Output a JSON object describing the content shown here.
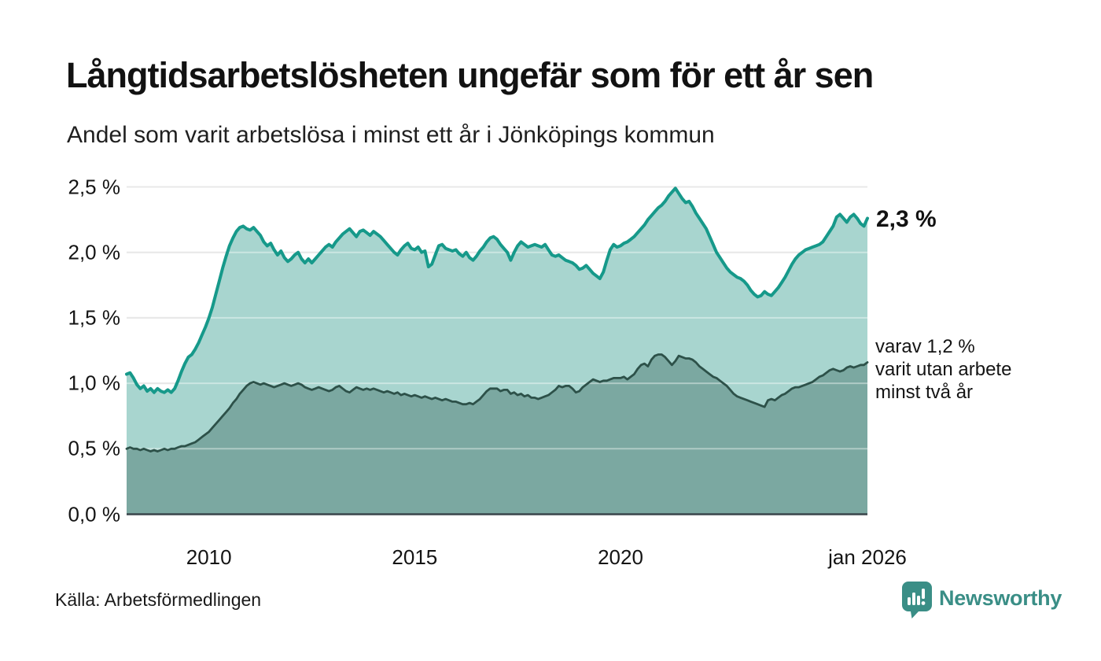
{
  "header": {
    "title": "Långtidsarbetslösheten ungefär som för ett år sen",
    "subtitle": "Andel som varit arbetslösa i minst ett år i Jönköpings kommun"
  },
  "end_label": "2,3 %",
  "annotation": {
    "line1": "varav 1,2 %",
    "line2": "varit utan arbete",
    "line3": "minst två år"
  },
  "source": "Källa: Arbetsförmedlingen",
  "logo": {
    "text": "Newsworthy"
  },
  "colors": {
    "line_1yr": "#16998a",
    "fill_1yr": "#a8d5cf",
    "line_2yr": "#2d5149",
    "fill_2yr": "#7ba8a1",
    "grid": "#d9d9d9",
    "grid_overlay": "rgba(255,255,255,0.40)",
    "baseline": "#39444a",
    "logo_teal": "#3a8e86"
  },
  "y_axis": {
    "ticks": [
      {
        "label": "0,0 %",
        "value": 0.0
      },
      {
        "label": "0,5 %",
        "value": 0.5
      },
      {
        "label": "1,0 %",
        "value": 1.0
      },
      {
        "label": "1,5 %",
        "value": 1.5
      },
      {
        "label": "2,0 %",
        "value": 2.0
      },
      {
        "label": "2,5 %",
        "value": 2.5
      }
    ]
  },
  "x_axis": {
    "ticks": [
      {
        "label": "2010",
        "year": 2010
      },
      {
        "label": "2015",
        "year": 2015
      },
      {
        "label": "2020",
        "year": 2020
      },
      {
        "label": "jan 2026",
        "year": 2026
      }
    ]
  },
  "chart_data": {
    "type": "area",
    "title": "Långtidsarbetslösheten ungefär som för ett år sen",
    "subtitle": "Andel som varit arbetslösa i minst ett år i Jönköpings kommun",
    "x_start_year": 2008.0,
    "x_end_year": 2026.0,
    "x_step": "1 month",
    "ylim": [
      0,
      2.5
    ],
    "grid": true,
    "unit": "%",
    "last_point_labels": [
      "2,3 %",
      "varav 1,2 % varit utan arbete minst två år"
    ],
    "series": [
      {
        "name": "Andel arbetslösa minst ett år",
        "values": [
          1.07,
          1.08,
          1.04,
          0.99,
          0.96,
          0.98,
          0.94,
          0.96,
          0.93,
          0.96,
          0.94,
          0.93,
          0.95,
          0.93,
          0.96,
          1.02,
          1.09,
          1.15,
          1.2,
          1.22,
          1.26,
          1.31,
          1.37,
          1.43,
          1.5,
          1.58,
          1.68,
          1.78,
          1.88,
          1.97,
          2.05,
          2.11,
          2.16,
          2.19,
          2.2,
          2.18,
          2.17,
          2.19,
          2.16,
          2.13,
          2.08,
          2.05,
          2.07,
          2.02,
          1.98,
          2.01,
          1.96,
          1.93,
          1.95,
          1.98,
          2.0,
          1.95,
          1.92,
          1.95,
          1.92,
          1.95,
          1.98,
          2.01,
          2.04,
          2.06,
          2.04,
          2.08,
          2.11,
          2.14,
          2.16,
          2.18,
          2.15,
          2.12,
          2.16,
          2.17,
          2.15,
          2.13,
          2.16,
          2.14,
          2.12,
          2.09,
          2.06,
          2.03,
          2.0,
          1.98,
          2.02,
          2.05,
          2.07,
          2.03,
          2.02,
          2.04,
          2.0,
          2.01,
          1.89,
          1.91,
          1.98,
          2.05,
          2.06,
          2.03,
          2.02,
          2.01,
          2.02,
          1.99,
          1.97,
          2.0,
          1.96,
          1.94,
          1.97,
          2.01,
          2.04,
          2.08,
          2.11,
          2.12,
          2.1,
          2.06,
          2.03,
          2.0,
          1.94,
          2.0,
          2.05,
          2.08,
          2.06,
          2.04,
          2.05,
          2.06,
          2.05,
          2.04,
          2.06,
          2.02,
          1.98,
          1.97,
          1.98,
          1.96,
          1.94,
          1.93,
          1.92,
          1.9,
          1.87,
          1.88,
          1.9,
          1.87,
          1.84,
          1.82,
          1.8,
          1.85,
          1.94,
          2.02,
          2.06,
          2.04,
          2.05,
          2.07,
          2.08,
          2.1,
          2.12,
          2.15,
          2.18,
          2.21,
          2.25,
          2.28,
          2.31,
          2.34,
          2.36,
          2.39,
          2.43,
          2.46,
          2.49,
          2.45,
          2.41,
          2.38,
          2.39,
          2.35,
          2.3,
          2.26,
          2.22,
          2.18,
          2.12,
          2.06,
          2.0,
          1.96,
          1.92,
          1.88,
          1.85,
          1.83,
          1.81,
          1.8,
          1.78,
          1.75,
          1.71,
          1.68,
          1.66,
          1.67,
          1.7,
          1.68,
          1.67,
          1.7,
          1.73,
          1.77,
          1.81,
          1.86,
          1.91,
          1.95,
          1.98,
          2.0,
          2.02,
          2.03,
          2.04,
          2.05,
          2.06,
          2.08,
          2.12,
          2.16,
          2.2,
          2.27,
          2.29,
          2.26,
          2.23,
          2.27,
          2.29,
          2.26,
          2.22,
          2.2,
          2.26
        ]
      },
      {
        "name": "varav utan arbete minst två år",
        "values": [
          0.5,
          0.51,
          0.5,
          0.5,
          0.49,
          0.5,
          0.49,
          0.48,
          0.49,
          0.48,
          0.49,
          0.5,
          0.49,
          0.5,
          0.5,
          0.51,
          0.52,
          0.52,
          0.53,
          0.54,
          0.55,
          0.57,
          0.59,
          0.61,
          0.63,
          0.66,
          0.69,
          0.72,
          0.75,
          0.78,
          0.81,
          0.85,
          0.88,
          0.92,
          0.95,
          0.98,
          1.0,
          1.01,
          1.0,
          0.99,
          1.0,
          0.99,
          0.98,
          0.97,
          0.98,
          0.99,
          1.0,
          0.99,
          0.98,
          0.99,
          1.0,
          0.99,
          0.97,
          0.96,
          0.95,
          0.96,
          0.97,
          0.96,
          0.95,
          0.94,
          0.95,
          0.97,
          0.98,
          0.96,
          0.94,
          0.93,
          0.95,
          0.97,
          0.96,
          0.95,
          0.96,
          0.95,
          0.96,
          0.95,
          0.94,
          0.93,
          0.94,
          0.93,
          0.92,
          0.93,
          0.91,
          0.92,
          0.91,
          0.9,
          0.91,
          0.9,
          0.89,
          0.9,
          0.89,
          0.88,
          0.89,
          0.88,
          0.87,
          0.88,
          0.87,
          0.86,
          0.86,
          0.85,
          0.84,
          0.84,
          0.85,
          0.84,
          0.86,
          0.88,
          0.91,
          0.94,
          0.96,
          0.96,
          0.96,
          0.94,
          0.95,
          0.95,
          0.92,
          0.93,
          0.91,
          0.92,
          0.9,
          0.91,
          0.89,
          0.89,
          0.88,
          0.89,
          0.9,
          0.91,
          0.93,
          0.95,
          0.98,
          0.97,
          0.98,
          0.98,
          0.96,
          0.93,
          0.94,
          0.97,
          0.99,
          1.01,
          1.03,
          1.02,
          1.01,
          1.02,
          1.02,
          1.03,
          1.04,
          1.04,
          1.04,
          1.05,
          1.03,
          1.05,
          1.07,
          1.11,
          1.14,
          1.15,
          1.13,
          1.18,
          1.21,
          1.22,
          1.22,
          1.2,
          1.17,
          1.14,
          1.17,
          1.21,
          1.2,
          1.19,
          1.19,
          1.18,
          1.16,
          1.13,
          1.11,
          1.09,
          1.07,
          1.05,
          1.04,
          1.02,
          1.0,
          0.98,
          0.95,
          0.92,
          0.9,
          0.89,
          0.88,
          0.87,
          0.86,
          0.85,
          0.84,
          0.83,
          0.82,
          0.87,
          0.88,
          0.87,
          0.89,
          0.91,
          0.92,
          0.94,
          0.96,
          0.97,
          0.97,
          0.98,
          0.99,
          1.0,
          1.01,
          1.03,
          1.05,
          1.06,
          1.08,
          1.1,
          1.11,
          1.1,
          1.09,
          1.1,
          1.12,
          1.13,
          1.12,
          1.13,
          1.14,
          1.14,
          1.16
        ]
      }
    ]
  }
}
